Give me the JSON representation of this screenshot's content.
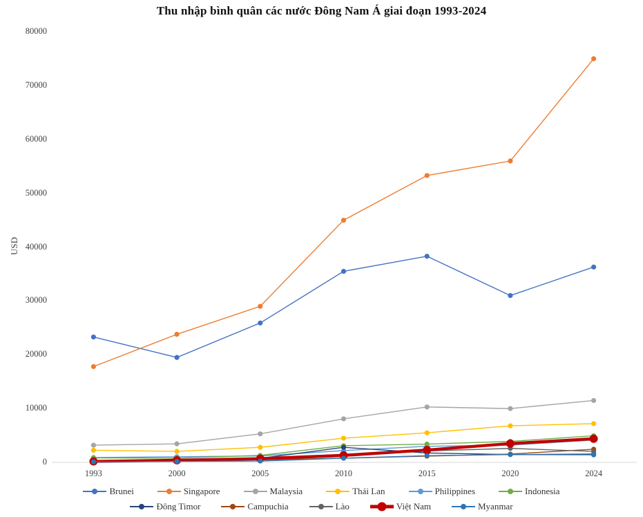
{
  "chart_data": {
    "type": "line",
    "title": "Thu nhập bình quân các nước Đông Nam Á giai đoạn 1993-2024",
    "ylabel": "USD",
    "xlabel": "",
    "categories": [
      "1993",
      "2000",
      "2005",
      "2010",
      "2015",
      "2020",
      "2024"
    ],
    "ylim": [
      0,
      80000
    ],
    "yticks": [
      0,
      10000,
      20000,
      30000,
      40000,
      50000,
      60000,
      70000,
      80000
    ],
    "grid": false,
    "legend_position": "bottom",
    "legend_rows": [
      6,
      5
    ],
    "axis_color": "#d9d9d9",
    "series": [
      {
        "name": "Brunei",
        "color": "#4472C4",
        "line_width": 1.4,
        "marker_r": 3.6,
        "values": [
          23300,
          19500,
          25900,
          35500,
          38300,
          31000,
          36300
        ]
      },
      {
        "name": "Singapore",
        "color": "#ED7D31",
        "line_width": 1.4,
        "marker_r": 3.6,
        "values": [
          17800,
          23800,
          29000,
          45000,
          53300,
          56000,
          75000
        ]
      },
      {
        "name": "Malaysia",
        "color": "#A5A5A5",
        "line_width": 1.4,
        "marker_r": 3.6,
        "values": [
          3200,
          3450,
          5300,
          8100,
          10300,
          10000,
          11500
        ]
      },
      {
        "name": "Thái Lan",
        "color": "#FFC000",
        "line_width": 1.4,
        "marker_r": 3.6,
        "values": [
          2250,
          2050,
          2800,
          4500,
          5500,
          6800,
          7200
        ]
      },
      {
        "name": "Philippines",
        "color": "#5B9BD5",
        "line_width": 1.4,
        "marker_r": 3.6,
        "values": [
          900,
          1050,
          1200,
          2200,
          3000,
          3200,
          4150
        ]
      },
      {
        "name": "Indonesia",
        "color": "#70AD47",
        "line_width": 1.4,
        "marker_r": 3.6,
        "values": [
          830,
          800,
          1300,
          3100,
          3400,
          3900,
          4950
        ]
      },
      {
        "name": "Đông Timor",
        "color": "#264478",
        "line_width": 1.4,
        "marker_r": 3.6,
        "values": [
          150,
          420,
          750,
          2800,
          1750,
          1450,
          1550
        ]
      },
      {
        "name": "Campuchia",
        "color": "#9E480E",
        "line_width": 1.4,
        "marker_r": 3.6,
        "values": [
          250,
          300,
          470,
          780,
          1160,
          1550,
          2450
        ]
      },
      {
        "name": "Lào",
        "color": "#636363",
        "line_width": 1.4,
        "marker_r": 3.6,
        "values": [
          350,
          330,
          480,
          1100,
          2130,
          2600,
          2050
        ]
      },
      {
        "name": "Việt Nam",
        "color": "#C00000",
        "line_width": 4.2,
        "marker_r": 6.0,
        "values": [
          185,
          400,
          700,
          1320,
          2300,
          3500,
          4400
        ]
      },
      {
        "name": "Myanmar",
        "color": "#2E75B6",
        "line_width": 1.4,
        "marker_r": 3.6,
        "values": [
          100,
          190,
          250,
          780,
          1250,
          1450,
          1400
        ]
      }
    ]
  }
}
